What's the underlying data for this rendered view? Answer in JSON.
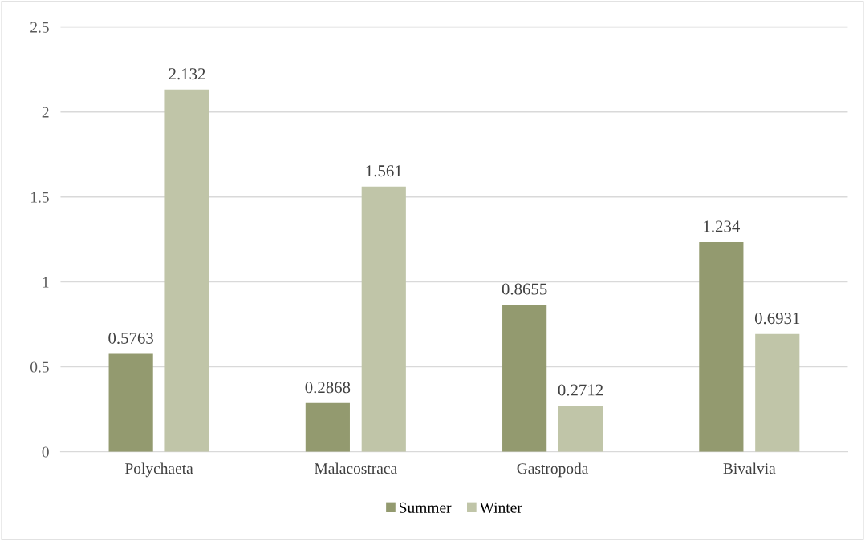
{
  "chart_data": {
    "type": "bar",
    "categories": [
      "Polychaeta",
      "Malacostraca",
      "Gastropoda",
      "Bivalvia"
    ],
    "series": [
      {
        "name": "Summer",
        "color": "#939a6f",
        "values": [
          0.5763,
          0.2868,
          0.8655,
          1.234
        ]
      },
      {
        "name": "Winter",
        "color": "#c0c5a8",
        "values": [
          2.132,
          1.561,
          0.2712,
          0.6931
        ]
      }
    ],
    "ylim": [
      0,
      2.5
    ],
    "yticks": [
      0,
      0.5,
      1,
      1.5,
      2,
      2.5
    ],
    "grid": "y",
    "legend": "bottom",
    "data_labels": true
  }
}
